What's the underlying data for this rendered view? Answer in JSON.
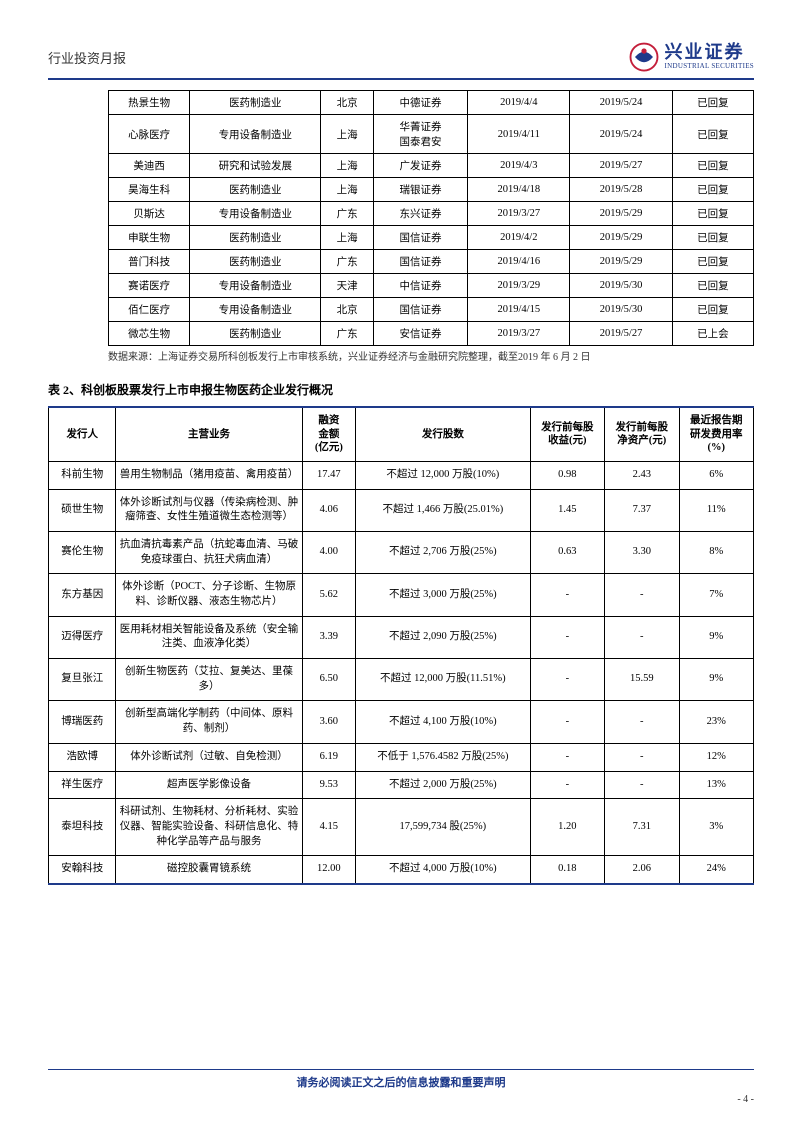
{
  "header": {
    "title": "行业投资月报",
    "logo_cn": "兴业证券",
    "logo_en": "INDUSTRIAL SECURITIES"
  },
  "table1": {
    "rows": [
      [
        "热景生物",
        "医药制造业",
        "北京",
        "中德证券",
        "2019/4/4",
        "2019/5/24",
        "已回复"
      ],
      [
        "心脉医疗",
        "专用设备制造业",
        "上海",
        "华菁证券\n国泰君安",
        "2019/4/11",
        "2019/5/24",
        "已回复"
      ],
      [
        "美迪西",
        "研究和试验发展",
        "上海",
        "广发证券",
        "2019/4/3",
        "2019/5/27",
        "已回复"
      ],
      [
        "昊海生科",
        "医药制造业",
        "上海",
        "瑞银证券",
        "2019/4/18",
        "2019/5/28",
        "已回复"
      ],
      [
        "贝斯达",
        "专用设备制造业",
        "广东",
        "东兴证券",
        "2019/3/27",
        "2019/5/29",
        "已回复"
      ],
      [
        "申联生物",
        "医药制造业",
        "上海",
        "国信证券",
        "2019/4/2",
        "2019/5/29",
        "已回复"
      ],
      [
        "普门科技",
        "医药制造业",
        "广东",
        "国信证券",
        "2019/4/16",
        "2019/5/29",
        "已回复"
      ],
      [
        "赛诺医疗",
        "专用设备制造业",
        "天津",
        "中信证券",
        "2019/3/29",
        "2019/5/30",
        "已回复"
      ],
      [
        "佰仁医疗",
        "专用设备制造业",
        "北京",
        "国信证券",
        "2019/4/15",
        "2019/5/30",
        "已回复"
      ],
      [
        "微芯生物",
        "医药制造业",
        "广东",
        "安信证券",
        "2019/3/27",
        "2019/5/27",
        "已上会"
      ]
    ]
  },
  "source_note": "数据来源：上海证券交易所科创板发行上市审核系统，兴业证券经济与金融研究院整理，截至2019 年 6 月 2 日",
  "table2_title": "表 2、科创板股票发行上市申报生物医药企业发行概况",
  "table2": {
    "headers": [
      "发行人",
      "主营业务",
      "融资\n金额\n(亿元)",
      "发行股数",
      "发行前每股\n收益(元)",
      "发行前每股\n净资产(元)",
      "最近报告期\n研发费用率\n(%)"
    ],
    "rows": [
      [
        "科前生物",
        "兽用生物制品（猪用疫苗、禽用疫苗）",
        "17.47",
        "不超过 12,000 万股(10%)",
        "0.98",
        "2.43",
        "6%"
      ],
      [
        "硕世生物",
        "体外诊断试剂与仪器（传染病检测、肿瘤筛查、女性生殖道微生态检测等）",
        "4.06",
        "不超过 1,466 万股(25.01%)",
        "1.45",
        "7.37",
        "11%"
      ],
      [
        "赛伦生物",
        "抗血清抗毒素产品（抗蛇毒血清、马破免疫球蛋白、抗狂犬病血清）",
        "4.00",
        "不超过 2,706 万股(25%)",
        "0.63",
        "3.30",
        "8%"
      ],
      [
        "东方基因",
        "体外诊断（POCT、分子诊断、生物原料、诊断仪器、液态生物芯片）",
        "5.62",
        "不超过 3,000 万股(25%)",
        "-",
        "-",
        "7%"
      ],
      [
        "迈得医疗",
        "医用耗材相关智能设备及系统（安全输注类、血液净化类）",
        "3.39",
        "不超过 2,090 万股(25%)",
        "-",
        "-",
        "9%"
      ],
      [
        "复旦张江",
        "创新生物医药（艾拉、复美达、里葆多）",
        "6.50",
        "不超过 12,000 万股(11.51%)",
        "-",
        "15.59",
        "9%"
      ],
      [
        "博瑞医药",
        "创新型高端化学制药（中间体、原料药、制剂）",
        "3.60",
        "不超过 4,100 万股(10%)",
        "-",
        "-",
        "23%"
      ],
      [
        "浩欧博",
        "体外诊断试剂（过敏、自免检测）",
        "6.19",
        "不低于 1,576.4582 万股(25%)",
        "-",
        "-",
        "12%"
      ],
      [
        "祥生医疗",
        "超声医学影像设备",
        "9.53",
        "不超过 2,000 万股(25%)",
        "-",
        "-",
        "13%"
      ],
      [
        "泰坦科技",
        "科研试剂、生物耗材、分析耗材、实验仪器、智能实验设备、科研信息化、特种化学品等产品与服务",
        "4.15",
        "17,599,734 股(25%)",
        "1.20",
        "7.31",
        "3%"
      ],
      [
        "安翰科技",
        "磁控胶囊胃镜系统",
        "12.00",
        "不超过 4,000 万股(10%)",
        "0.18",
        "2.06",
        "24%"
      ]
    ]
  },
  "footer": {
    "text": "请务必阅读正文之后的信息披露和重要声明",
    "page": "- 4 -"
  },
  "colors": {
    "primary_blue": "#1e3a8a",
    "logo_red": "#c41e3a",
    "text": "#000000",
    "background": "#ffffff"
  }
}
